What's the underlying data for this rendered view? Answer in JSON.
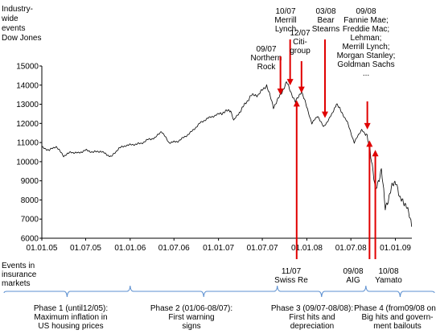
{
  "chart_data": {
    "type": "line",
    "ylabel_lines": [
      "Industry-",
      "wide",
      "events",
      "Dow Jones"
    ],
    "ylim": [
      6000,
      15000
    ],
    "yticks": [
      6000,
      7000,
      8000,
      9000,
      10000,
      11000,
      12000,
      13000,
      14000,
      15000
    ],
    "x_range": [
      "2005-01-01",
      "2009-03-10"
    ],
    "xticks": [
      {
        "date": "2005-01-01",
        "label": "01.01.05"
      },
      {
        "date": "2005-07-01",
        "label": "01.07.05"
      },
      {
        "date": "2006-01-01",
        "label": "01.01.06"
      },
      {
        "date": "2006-07-01",
        "label": "01.07.06"
      },
      {
        "date": "2007-01-01",
        "label": "01.01.07"
      },
      {
        "date": "2007-07-01",
        "label": "01.07.07"
      },
      {
        "date": "2008-01-01",
        "label": "01.01.08"
      },
      {
        "date": "2008-07-01",
        "label": "01.07.08"
      },
      {
        "date": "2009-01-01",
        "label": "01.01.09"
      }
    ],
    "grid": false,
    "series": [
      {
        "color": "#000000",
        "points": [
          [
            "2005-01-01",
            10750
          ],
          [
            "2005-02-01",
            10600
          ],
          [
            "2005-03-01",
            10800
          ],
          [
            "2005-04-01",
            10300
          ],
          [
            "2005-05-01",
            10500
          ],
          [
            "2005-06-01",
            10450
          ],
          [
            "2005-07-01",
            10600
          ],
          [
            "2005-08-01",
            10500
          ],
          [
            "2005-09-01",
            10550
          ],
          [
            "2005-10-15",
            10250
          ],
          [
            "2005-11-15",
            10700
          ],
          [
            "2005-12-15",
            10850
          ],
          [
            "2006-01-15",
            10900
          ],
          [
            "2006-02-15",
            10950
          ],
          [
            "2006-03-15",
            11150
          ],
          [
            "2006-04-15",
            11250
          ],
          [
            "2006-05-10",
            11600
          ],
          [
            "2006-06-10",
            11000
          ],
          [
            "2006-07-15",
            11050
          ],
          [
            "2006-08-15",
            11300
          ],
          [
            "2006-09-15",
            11600
          ],
          [
            "2006-10-15",
            12000
          ],
          [
            "2006-11-15",
            12250
          ],
          [
            "2006-12-15",
            12400
          ],
          [
            "2007-01-15",
            12550
          ],
          [
            "2007-02-20",
            12700
          ],
          [
            "2007-03-05",
            12150
          ],
          [
            "2007-04-15",
            12900
          ],
          [
            "2007-05-15",
            13450
          ],
          [
            "2007-06-15",
            13500
          ],
          [
            "2007-07-19",
            14000
          ],
          [
            "2007-08-16",
            12850
          ],
          [
            "2007-09-15",
            13500
          ],
          [
            "2007-10-09",
            14160
          ],
          [
            "2007-11-15",
            13100
          ],
          [
            "2007-12-10",
            13700
          ],
          [
            "2008-01-22",
            12000
          ],
          [
            "2008-02-15",
            12400
          ],
          [
            "2008-03-10",
            11800
          ],
          [
            "2008-04-15",
            12500
          ],
          [
            "2008-05-02",
            13050
          ],
          [
            "2008-06-15",
            12100
          ],
          [
            "2008-07-15",
            11000
          ],
          [
            "2008-08-15",
            11700
          ],
          [
            "2008-09-15",
            11050
          ],
          [
            "2008-10-10",
            8450
          ],
          [
            "2008-11-04",
            9600
          ],
          [
            "2008-11-20",
            7550
          ],
          [
            "2008-12-15",
            8600
          ],
          [
            "2009-01-05",
            9000
          ],
          [
            "2009-01-20",
            8000
          ],
          [
            "2009-02-15",
            7800
          ],
          [
            "2009-03-09",
            6600
          ]
        ]
      }
    ],
    "industry_events": [
      {
        "lines": [
          "09/07",
          "Northern",
          "Rock"
        ],
        "date": "2007-09-14",
        "value": 13400
      },
      {
        "lines": [
          "10/07",
          "Merrill",
          "Lynch"
        ],
        "date": "2007-10-24",
        "value": 13900
      },
      {
        "lines": [
          "12/07",
          "Citi-",
          "group"
        ],
        "date": "2007-12-10",
        "value": 13500
      },
      {
        "lines": [
          "03/08",
          "Bear",
          "Stearns"
        ],
        "date": "2008-03-16",
        "value": 12200
      },
      {
        "lines": [
          "09/08",
          "Fannie Mae;",
          "Freddie Mac;",
          "Lehman;",
          "Merrill Lynch;",
          "Morgan Stanley;",
          "Goldman Sachs",
          "..."
        ],
        "date": "2008-09-07",
        "value": 11600
      }
    ],
    "insurance_events_label": [
      "Events in",
      "insurance",
      "markets"
    ],
    "insurance_events": [
      {
        "lines": [
          "11/07",
          "Swiss Re"
        ],
        "date": "2007-11-20",
        "value": 13300
      },
      {
        "lines": [
          "09/08",
          "AIG"
        ],
        "date": "2008-09-16",
        "value": 11200
      },
      {
        "lines": [
          "10/08",
          "Yamato"
        ],
        "date": "2008-10-10",
        "value": 10700
      }
    ],
    "phases": [
      {
        "lines": [
          "Phase 1 (until12/05):",
          "Maximum inflation in",
          "US housing prices"
        ],
        "start": "2005-01-01",
        "end": "2005-12-31"
      },
      {
        "lines": [
          "Phase 2 (01/06-08/07):",
          "First warning",
          "signs"
        ],
        "start": "2006-01-01",
        "end": "2007-08-31"
      },
      {
        "lines": [
          "Phase 3 (09/07-08/08):",
          "First hits and",
          "depreciation"
        ],
        "start": "2007-09-01",
        "end": "2008-08-31"
      },
      {
        "lines": [
          "Phase 4 (from09/08 on):",
          "Big hits and govern-",
          "ment bailouts"
        ],
        "start": "2008-09-01",
        "end": "2009-03-10"
      }
    ],
    "colors": {
      "line": "#000000",
      "arrow": "#e00000",
      "brace": "#5b8fd0",
      "axis": "#000000"
    }
  }
}
